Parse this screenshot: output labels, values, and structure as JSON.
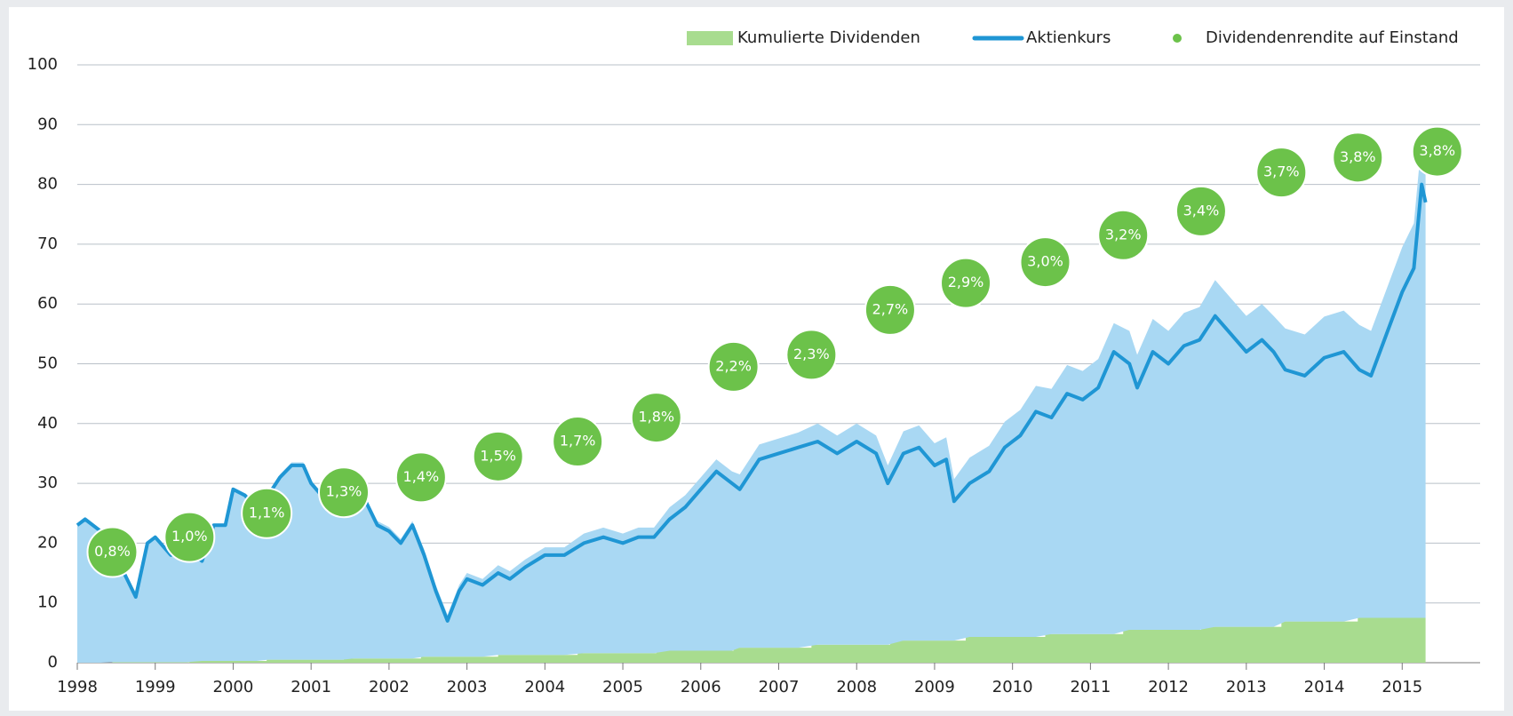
{
  "chart_data": {
    "type": "line",
    "xlim": [
      1998,
      2016
    ],
    "xticks": [
      1998,
      1999,
      2000,
      2001,
      2002,
      2003,
      2004,
      2005,
      2006,
      2007,
      2008,
      2009,
      2010,
      2011,
      2012,
      2013,
      2014,
      2015
    ],
    "ylim": [
      0,
      100
    ],
    "yticks": [
      0,
      10,
      20,
      30,
      40,
      50,
      60,
      70,
      80,
      90,
      100
    ],
    "grid": true,
    "legend": "top-right",
    "series": [
      {
        "name": "Kumulierte Dividenden",
        "type": "step-area",
        "color": "#a8dc8f",
        "x": [
          1998.0,
          1998.45,
          1999.44,
          2000.43,
          2001.42,
          2002.41,
          2003.4,
          2004.42,
          2005.43,
          2006.42,
          2007.42,
          2008.43,
          2009.4,
          2010.42,
          2011.42,
          2012.42,
          2013.45,
          2014.43,
          2015.3
        ],
        "values": [
          0,
          0.1,
          0.3,
          0.5,
          0.7,
          1.0,
          1.3,
          1.6,
          2.0,
          2.5,
          3.0,
          3.7,
          4.3,
          4.8,
          5.5,
          6.0,
          6.9,
          7.5,
          7.5
        ]
      },
      {
        "name": "Aktienkurs",
        "type": "line",
        "color": "#1f96d4",
        "area_color": "#a9d8f3",
        "x": [
          1998.0,
          1998.1,
          1998.3,
          1998.45,
          1998.6,
          1998.75,
          1998.9,
          1999.0,
          1999.2,
          1999.4,
          1999.6,
          1999.75,
          1999.9,
          2000.0,
          2000.15,
          2000.3,
          2000.45,
          2000.6,
          2000.75,
          2000.9,
          2001.0,
          2001.2,
          2001.4,
          2001.55,
          2001.7,
          2001.85,
          2002.0,
          2002.15,
          2002.3,
          2002.45,
          2002.6,
          2002.75,
          2002.9,
          2003.0,
          2003.2,
          2003.4,
          2003.55,
          2003.75,
          2004.0,
          2004.25,
          2004.5,
          2004.75,
          2005.0,
          2005.2,
          2005.4,
          2005.6,
          2005.8,
          2006.0,
          2006.2,
          2006.4,
          2006.5,
          2006.75,
          2007.0,
          2007.25,
          2007.5,
          2007.75,
          2008.0,
          2008.25,
          2008.4,
          2008.6,
          2008.8,
          2009.0,
          2009.15,
          2009.25,
          2009.45,
          2009.7,
          2009.9,
          2010.1,
          2010.3,
          2010.5,
          2010.7,
          2010.9,
          2011.1,
          2011.3,
          2011.5,
          2011.6,
          2011.8,
          2012.0,
          2012.2,
          2012.4,
          2012.6,
          2012.8,
          2013.0,
          2013.2,
          2013.35,
          2013.5,
          2013.75,
          2014.0,
          2014.25,
          2014.45,
          2014.6,
          2014.8,
          2015.0,
          2015.15,
          2015.25,
          2015.3
        ],
        "values": [
          23,
          24,
          22,
          19,
          15,
          11,
          20,
          21,
          18,
          19,
          17,
          23,
          23,
          29,
          28,
          26,
          28,
          31,
          33,
          33,
          30,
          27,
          26,
          28,
          27,
          23,
          22,
          20,
          23,
          18,
          12,
          7,
          12,
          14,
          13,
          15,
          14,
          16,
          18,
          18,
          20,
          21,
          20,
          21,
          21,
          24,
          26,
          29,
          32,
          30,
          29,
          34,
          35,
          36,
          37,
          35,
          37,
          35,
          30,
          35,
          36,
          33,
          34,
          27,
          30,
          32,
          36,
          38,
          42,
          41,
          45,
          44,
          46,
          52,
          50,
          46,
          52,
          50,
          53,
          54,
          58,
          55,
          52,
          54,
          52,
          49,
          48,
          51,
          52,
          49,
          48,
          55,
          62,
          66,
          80,
          77
        ]
      },
      {
        "name": "Dividendenrendite auf Einstand",
        "type": "bubble",
        "color": "#6cc24a",
        "x": [
          1998.45,
          1999.44,
          2000.43,
          2001.42,
          2002.41,
          2003.4,
          2004.42,
          2005.43,
          2006.42,
          2007.42,
          2008.43,
          2009.4,
          2010.42,
          2011.42,
          2012.42,
          2013.45,
          2014.43,
          2015.45
        ],
        "y": [
          18.5,
          21,
          25,
          28.5,
          31,
          34.5,
          37,
          41,
          49.5,
          51.5,
          59,
          63.5,
          67,
          71.5,
          75.5,
          82,
          84.5,
          85.5
        ],
        "values": [
          0.8,
          1.0,
          1.1,
          1.3,
          1.4,
          1.5,
          1.7,
          1.8,
          2.2,
          2.3,
          2.7,
          2.9,
          3.0,
          3.2,
          3.4,
          3.7,
          3.8,
          3.8
        ],
        "value_labels": [
          "0,8%",
          "1,0%",
          "1,1%",
          "1,3%",
          "1,4%",
          "1,5%",
          "1,7%",
          "1,8%",
          "2,2%",
          "2,3%",
          "2,7%",
          "2,9%",
          "3,0%",
          "3,2%",
          "3,4%",
          "3,7%",
          "3,8%",
          "3,8%"
        ]
      }
    ]
  }
}
